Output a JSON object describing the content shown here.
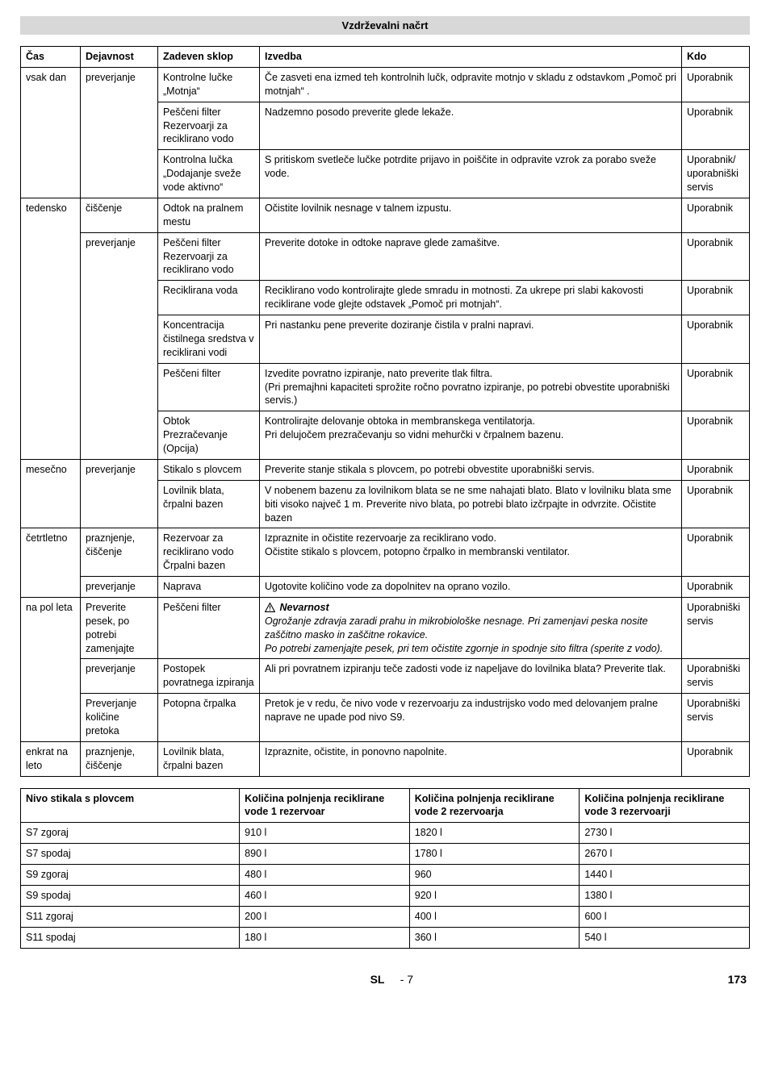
{
  "banner_title": "Vzdrževalni načrt",
  "table1": {
    "headers": [
      "Čas",
      "Dejavnost",
      "Zadeven sklop",
      "Izvedba",
      "Kdo"
    ],
    "rows": [
      {
        "cas": "vsak dan",
        "cas_rowspan": 3,
        "dej": "preverjanje",
        "dej_rowspan": 3,
        "sklop": "Kontrolne lučke „Motnja“",
        "izv": "Če zasveti ena izmed teh kontrolnih lučk, odpravite motnjo v skladu z odstavkom „Pomoč pri motnjah“ .",
        "kdo": "Uporabnik"
      },
      {
        "sklop": "Peščeni filter\nRezervoarji za reciklirano vodo",
        "izv": "Nadzemno posodo preverite glede lekaže.",
        "kdo": "Uporabnik"
      },
      {
        "sklop": "Kontrolna lučka „Dodajanje sveže vode aktivno“",
        "izv": "S pritiskom svetleče lučke potrdite prijavo in poiščite in odpravite vzrok za porabo sveže vode.",
        "kdo": "Uporabnik/\nuporabniški servis"
      },
      {
        "cas": "tedensko",
        "cas_rowspan": 6,
        "dej": "čiščenje",
        "dej_rowspan": 1,
        "sklop": "Odtok na pralnem mestu",
        "izv": "Očistite lovilnik nesnage v talnem izpustu.",
        "kdo": "Uporabnik"
      },
      {
        "dej": "preverjanje",
        "dej_rowspan": 5,
        "sklop": "Peščeni filter\nRezervoarji za reciklirano vodo",
        "izv": "Preverite dotoke in odtoke naprave glede zamašitve.",
        "kdo": "Uporabnik"
      },
      {
        "sklop": "Reciklirana voda",
        "izv": "Reciklirano vodo kontrolirajte glede smradu in motnosti. Za ukrepe pri slabi kakovosti reciklirane vode glejte odstavek „Pomoč pri motnjah“.",
        "kdo": "Uporabnik"
      },
      {
        "sklop": "Koncentracija čistilnega sredstva v reciklirani vodi",
        "izv": "Pri nastanku pene preverite doziranje čistila v pralni napravi.",
        "kdo": "Uporabnik"
      },
      {
        "sklop": "Peščeni filter",
        "izv": "Izvedite povratno izpiranje, nato preverite tlak filtra.\n(Pri premajhni kapaciteti sprožite ročno povratno izpiranje, po potrebi obvestite uporabniški servis.)",
        "kdo": "Uporabnik"
      },
      {
        "sklop": "Obtok\nPrezračevanje (Opcija)",
        "izv": "Kontrolirajte delovanje obtoka in membranskega ventilatorja.\nPri delujočem prezračevanju so vidni mehurčki v črpalnem bazenu.",
        "kdo": "Uporabnik"
      },
      {
        "cas": "mesečno",
        "cas_rowspan": 2,
        "dej": "preverjanje",
        "dej_rowspan": 2,
        "sklop": "Stikalo s plovcem",
        "izv": "Preverite stanje stikala s plovcem, po potrebi obvestite uporabniški servis.",
        "kdo": "Uporabnik"
      },
      {
        "sklop": "Lovilnik blata, črpalni bazen",
        "izv": "V nobenem bazenu za lovilnikom blata se ne sme nahajati blato. Blato v lovilniku blata sme biti visoko največ 1 m. Preverite nivo blata, po potrebi blato izčrpajte in odvrzite. Očistite bazen",
        "kdo": "Uporabnik"
      },
      {
        "cas": "četrtletno",
        "cas_rowspan": 2,
        "dej": "praznjenje, čiščenje",
        "dej_rowspan": 1,
        "sklop": "Rezervoar za reciklirano vodo\nČrpalni bazen",
        "izv": "Izpraznite in očistite rezervoarje za reciklirano vodo.\nOčistite stikalo s plovcem, potopno črpalko in membranski ventilator.",
        "kdo": "Uporabnik"
      },
      {
        "dej": "preverjanje",
        "dej_rowspan": 1,
        "sklop": "Naprava",
        "izv": "Ugotovite količino vode za dopolnitev na oprano vozilo.",
        "kdo": "Uporabnik"
      },
      {
        "cas": "na pol leta",
        "cas_rowspan": 3,
        "dej": "Preverite pesek, po potrebi zamenjajte",
        "dej_rowspan": 1,
        "sklop": "Peščeni filter",
        "izv_warning": {
          "title": "Nevarnost",
          "body": "Ogrožanje zdravja zaradi prahu in mikrobiološke nesnage. Pri zamenjavi peska nosite zaščitno masko in zaščitne rokavice.\nPo potrebi zamenjajte pesek, pri tem očistite zgornje in spodnje sito filtra (sperite z vodo)."
        },
        "kdo": "Uporabniški servis"
      },
      {
        "dej": "preverjanje",
        "dej_rowspan": 1,
        "sklop": "Postopek povratnega izpiranja",
        "izv": "Ali pri povratnem izpiranju teče zadosti vode iz napeljave do lovilnika blata? Preverite tlak.",
        "kdo": "Uporabniški servis"
      },
      {
        "dej": "Preverjanje količine pretoka",
        "dej_rowspan": 1,
        "sklop": "Potopna črpalka",
        "izv": "Pretok je v redu, če nivo vode v rezervoarju za industrijsko vodo med delovanjem pralne naprave ne upade pod nivo S9.",
        "kdo": "Uporabniški servis"
      },
      {
        "cas": "enkrat na leto",
        "cas_rowspan": 1,
        "dej": "praznjenje, čiščenje",
        "dej_rowspan": 1,
        "sklop": "Lovilnik blata, črpalni bazen",
        "izv": "Izpraznite, očistite, in ponovno napolnite.",
        "kdo": "Uporabnik"
      }
    ]
  },
  "table2": {
    "headers": [
      "Nivo stikala s plovcem",
      "Količina polnjenja reciklirane vode 1 rezervoar",
      "Količina polnjenja reciklirane vode 2 rezervoarja",
      "Količina polnjenja reciklirane vode 3 rezervoarji"
    ],
    "rows": [
      [
        "S7 zgoraj",
        "910 l",
        "1820 l",
        "2730 l"
      ],
      [
        "S7 spodaj",
        "890 l",
        "1780 l",
        "2670 l"
      ],
      [
        "S9 zgoraj",
        "480 l",
        "960",
        "1440 l"
      ],
      [
        "S9 spodaj",
        "460 l",
        "920 l",
        "1380 l"
      ],
      [
        "S11 zgoraj",
        "200 l",
        "400 l",
        "600 l"
      ],
      [
        "S11 spodaj",
        "180 l",
        "360 l",
        "540 l"
      ]
    ]
  },
  "footer": {
    "lang": "SL",
    "dash_num": "- 7",
    "page": "173"
  }
}
